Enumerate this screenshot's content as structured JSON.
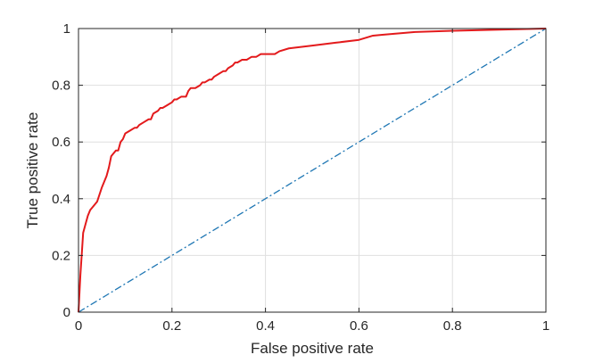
{
  "chart_data": {
    "type": "line",
    "title": "",
    "xlabel": "False positive rate",
    "ylabel": "True positive rate",
    "xlim": [
      0,
      1
    ],
    "ylim": [
      0,
      1
    ],
    "grid": true,
    "legend": "none",
    "x_ticks": [
      0,
      0.2,
      0.4,
      0.6,
      0.8,
      1
    ],
    "x_tick_labels": [
      "0",
      "0.2",
      "0.4",
      "0.6",
      "0.8",
      "1"
    ],
    "y_ticks": [
      0,
      0.2,
      0.4,
      0.6,
      0.8,
      1
    ],
    "y_tick_labels": [
      "0",
      "0.2",
      "0.4",
      "0.6",
      "0.8",
      "1"
    ],
    "series": [
      {
        "color": "#e31a1c",
        "line_style": "solid",
        "x": [
          0,
          0.004,
          0.01,
          0.015,
          0.02,
          0.025,
          0.03,
          0.04,
          0.05,
          0.055,
          0.06,
          0.065,
          0.07,
          0.08,
          0.085,
          0.09,
          0.095,
          0.1,
          0.11,
          0.12,
          0.125,
          0.13,
          0.14,
          0.15,
          0.155,
          0.16,
          0.17,
          0.175,
          0.18,
          0.19,
          0.2,
          0.205,
          0.21,
          0.22,
          0.225,
          0.23,
          0.235,
          0.24,
          0.25,
          0.26,
          0.265,
          0.27,
          0.28,
          0.285,
          0.29,
          0.3,
          0.31,
          0.315,
          0.32,
          0.33,
          0.335,
          0.34,
          0.35,
          0.36,
          0.37,
          0.38,
          0.39,
          0.4,
          0.41,
          0.42,
          0.43,
          0.45,
          0.5,
          0.55,
          0.6,
          0.63,
          0.65,
          0.72,
          0.8,
          0.9,
          1
        ],
        "y": [
          0,
          0.13,
          0.28,
          0.31,
          0.34,
          0.36,
          0.37,
          0.39,
          0.44,
          0.46,
          0.48,
          0.51,
          0.55,
          0.57,
          0.57,
          0.6,
          0.61,
          0.63,
          0.64,
          0.65,
          0.65,
          0.66,
          0.67,
          0.68,
          0.68,
          0.7,
          0.71,
          0.72,
          0.72,
          0.73,
          0.74,
          0.75,
          0.75,
          0.76,
          0.76,
          0.76,
          0.78,
          0.79,
          0.79,
          0.8,
          0.81,
          0.81,
          0.82,
          0.82,
          0.83,
          0.84,
          0.85,
          0.85,
          0.86,
          0.87,
          0.88,
          0.88,
          0.89,
          0.89,
          0.9,
          0.9,
          0.91,
          0.91,
          0.91,
          0.91,
          0.92,
          0.93,
          0.94,
          0.95,
          0.96,
          0.975,
          0.978,
          0.988,
          0.992,
          0.996,
          1
        ]
      },
      {
        "color": "#1f77b4",
        "line_style": "dash-dot",
        "x": [
          0,
          1
        ],
        "y": [
          0,
          1
        ]
      }
    ]
  }
}
